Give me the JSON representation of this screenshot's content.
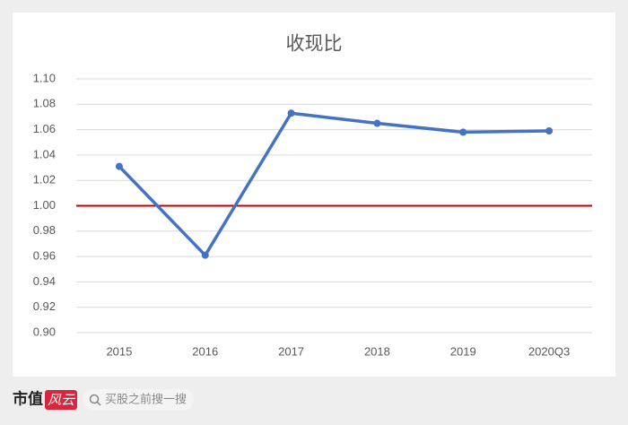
{
  "chart_data": {
    "type": "line",
    "title": "收现比",
    "categories": [
      "2015",
      "2016",
      "2017",
      "2018",
      "2019",
      "2020Q3"
    ],
    "series": [
      {
        "name": "收现比",
        "color": "#4472c4",
        "values": [
          1.031,
          0.961,
          1.073,
          1.065,
          1.058,
          1.059
        ]
      }
    ],
    "ylim": [
      0.9,
      1.1
    ],
    "yticks": [
      {
        "value": 0.9,
        "label": "0.90"
      },
      {
        "value": 0.92,
        "label": "0.92"
      },
      {
        "value": 0.94,
        "label": "0.94"
      },
      {
        "value": 0.96,
        "label": "0.96"
      },
      {
        "value": 0.98,
        "label": "0.98"
      },
      {
        "value": 1.0,
        "label": "1.00"
      },
      {
        "value": 1.02,
        "label": "1.02"
      },
      {
        "value": 1.04,
        "label": "1.04"
      },
      {
        "value": 1.06,
        "label": "1.06"
      },
      {
        "value": 1.08,
        "label": "1.08"
      },
      {
        "value": 1.1,
        "label": "1.10"
      }
    ],
    "grid": true,
    "reference_line": {
      "value": 1.0,
      "color": "#c00000"
    }
  },
  "footer": {
    "brand": "市值",
    "logo": "风云",
    "search": "买股之前搜一搜"
  }
}
